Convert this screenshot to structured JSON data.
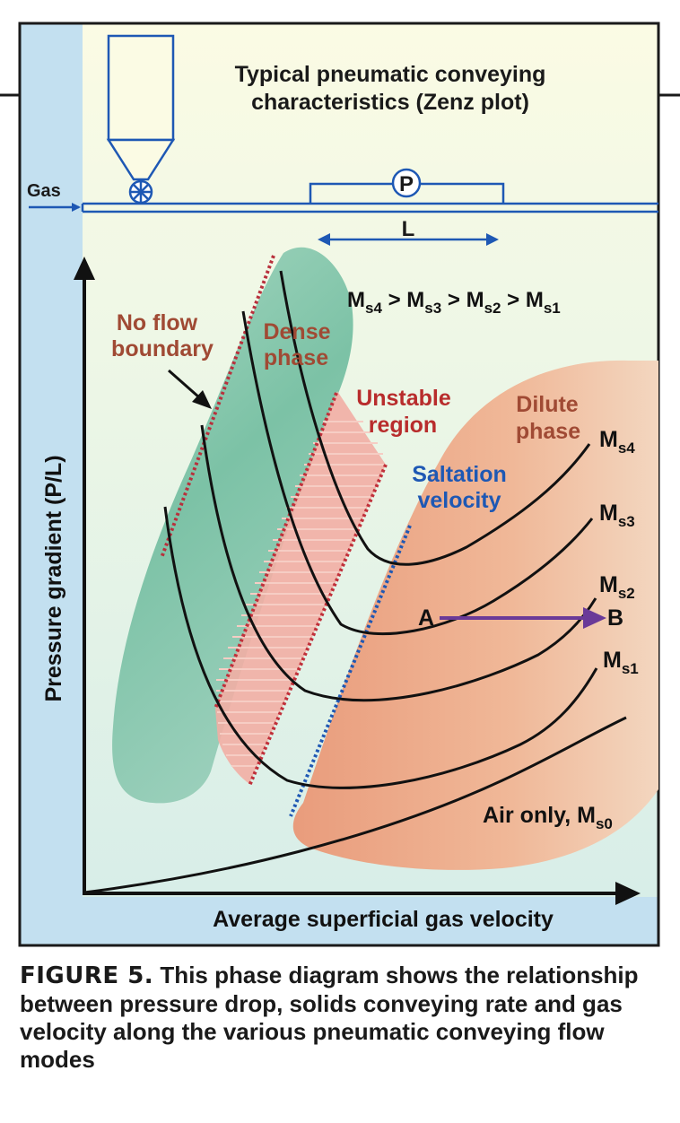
{
  "figure": {
    "title_line1": "Typical pneumatic conveying",
    "title_line2": "characteristics (Zenz plot)",
    "gas_label": "Gas",
    "pressure_gauge": "P",
    "length_label": "L",
    "mass_order": {
      "m": "M",
      "s4": "s4",
      "gt1": " > ",
      "s3": "s3",
      "gt2": " > ",
      "s2": "s2",
      "gt3": " > ",
      "s1": "s1"
    },
    "y_axis_label": "Pressure gradient (P/L)",
    "x_axis_label": "Average superficial gas velocity",
    "no_flow_line1": "No flow",
    "no_flow_line2": "boundary",
    "dense_line1": "Dense",
    "dense_line2": "phase",
    "unstable_line1": "Unstable",
    "unstable_line2": "region",
    "saltation_line1": "Saltation",
    "saltation_line2": "velocity",
    "dilute_line1": "Dilute",
    "dilute_line2": "phase",
    "curve_labels": [
      {
        "m": "M",
        "sub": "s4"
      },
      {
        "m": "M",
        "sub": "s3"
      },
      {
        "m": "M",
        "sub": "s2"
      },
      {
        "m": "M",
        "sub": "s1"
      }
    ],
    "air_only": {
      "text": "Air only, M",
      "sub": "s0"
    },
    "point_a": "A",
    "point_b": "B"
  },
  "caption": {
    "label": "FIGURE 5.",
    "text": " This phase diagram shows the relationship between pressure drop, solids conveying rate and gas velocity along the various pneumatic conveying flow modes"
  },
  "colors": {
    "frame": "#1a1a1a",
    "left_band": "#c3e0f0",
    "background_top": "#fbfbe6",
    "background_bottom": "#d9eee8",
    "dense_green": "#7fc4a8",
    "dilute_orange": "#eda888",
    "unstable_red": "#f0a8a0",
    "boundary_red": "#c0303a",
    "saltation_blue": "#1e58b4",
    "label_brown": "#a04a34",
    "label_red": "#b82c2c",
    "label_blue": "#1e58b4",
    "schematic_blue": "#1e58b4",
    "arrow_purple": "#6a3a98"
  }
}
